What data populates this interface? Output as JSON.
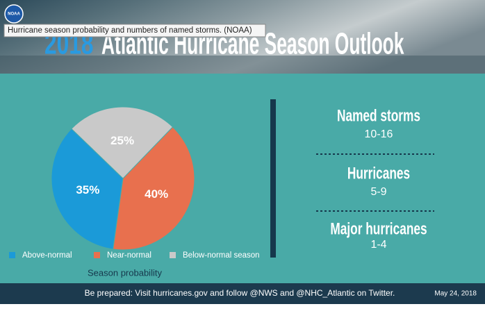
{
  "tooltip": "Hurricane season probability and numbers of named storms. (NOAA)",
  "header": {
    "logo": "NOAA",
    "year": "2018",
    "title": "Atlantic Hurricane Season Outlook"
  },
  "chart_data": {
    "type": "pie",
    "title": "Season probability",
    "categories": [
      "Above-normal",
      "Near-normal",
      "Below-normal season"
    ],
    "values": [
      35,
      40,
      25
    ],
    "value_labels": [
      "35%",
      "40%",
      "25%"
    ],
    "colors": [
      "#1b9ad8",
      "#e8704e",
      "#c9c9c9"
    ]
  },
  "outlook": [
    {
      "label": "Named storms",
      "range": "10-16"
    },
    {
      "label": "Hurricanes",
      "range": "5-9"
    },
    {
      "label": "Major hurricanes",
      "range": "1-4"
    }
  ],
  "footer": {
    "message": "Be prepared: Visit hurricanes.gov and follow @NWS and @NHC_Atlantic on Twitter.",
    "date": "May 24, 2018"
  }
}
